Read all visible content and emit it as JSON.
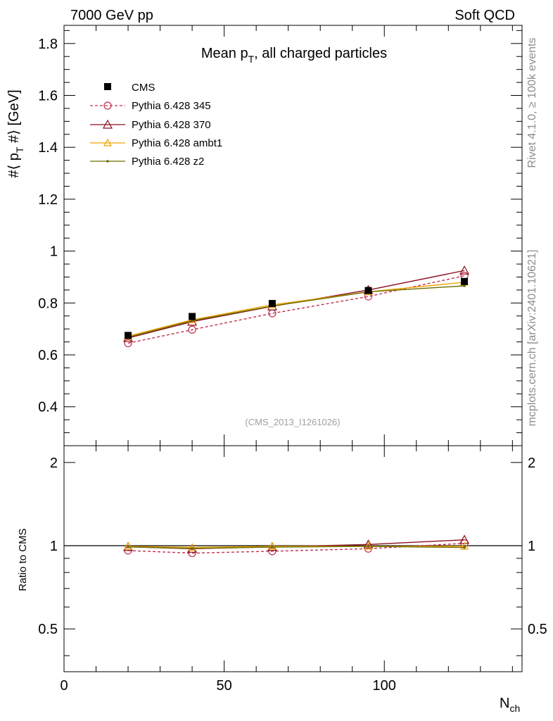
{
  "header": {
    "left": "7000 GeV pp",
    "right": "Soft QCD"
  },
  "side": {
    "top": "Rivet 4.1.0, ≥ 100k events",
    "bottom": "mcplots.cern.ch [arXiv:2401.10621]"
  },
  "watermark": "(CMS_2013_I1261026)",
  "title": {
    "main": "Mean p",
    "sub": "T",
    "rest": ", all charged particles"
  },
  "ylabel": {
    "pre": "#⟨ p",
    "sub": "T",
    "post": " #⟩ [GeV]"
  },
  "ratio_ylabel": "Ratio to CMS",
  "xlabel": {
    "main": "N",
    "sub": "ch"
  },
  "colors": {
    "cms": "#000000",
    "p345": "#c0304c",
    "p370": "#8b0f1e",
    "ambt1": "#f0a400",
    "z2": "#6e6e00"
  },
  "chart_data": {
    "type": "line",
    "title": "Mean pT, all charged particles",
    "xlabel": "Nch",
    "ylabel": "<pT> [GeV]",
    "xlim": [
      0,
      143
    ],
    "ylim": [
      0.25,
      1.87
    ],
    "xticks": [
      "0",
      "50",
      "100"
    ],
    "yticks": [
      "0.4",
      "0.6",
      "0.8",
      "1",
      "1.2",
      "1.4",
      "1.6",
      "1.8"
    ],
    "x": [
      20,
      40,
      65,
      95,
      125
    ],
    "series": [
      {
        "name": "CMS",
        "values": [
          0.675,
          0.748,
          0.798,
          0.848,
          0.883
        ]
      },
      {
        "name": "Pythia 6.428 345",
        "values": [
          0.645,
          0.697,
          0.76,
          0.825,
          0.905
        ]
      },
      {
        "name": "Pythia 6.428 370",
        "values": [
          0.665,
          0.728,
          0.787,
          0.85,
          0.925
        ]
      },
      {
        "name": "Pythia 6.428 ambt1",
        "values": [
          0.672,
          0.735,
          0.793,
          0.843,
          0.88
        ]
      },
      {
        "name": "Pythia 6.428 z2",
        "values": [
          0.668,
          0.732,
          0.788,
          0.843,
          0.866
        ]
      }
    ],
    "ratio": {
      "ylabel": "Ratio to CMS",
      "ylim": [
        0.35,
        2.3
      ],
      "yticks": [
        "0.5",
        "1",
        "2"
      ],
      "series": [
        {
          "name": "Pythia 6.428 345",
          "values": [
            0.96,
            0.94,
            0.955,
            0.975,
            1.02
          ]
        },
        {
          "name": "Pythia 6.428 370",
          "values": [
            0.99,
            0.975,
            0.99,
            1.01,
            1.05
          ]
        },
        {
          "name": "Pythia 6.428 ambt1",
          "values": [
            0.995,
            0.985,
            0.995,
            0.995,
            0.995
          ]
        },
        {
          "name": "Pythia 6.428 z2",
          "values": [
            0.99,
            0.978,
            0.988,
            0.995,
            0.985
          ]
        }
      ]
    }
  }
}
